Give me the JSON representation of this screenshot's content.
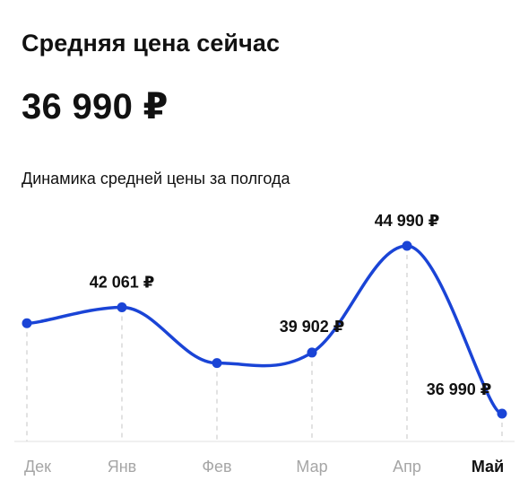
{
  "header": {
    "title": "Средняя цена сейчас",
    "current_price": "36 990 ₽",
    "subtitle": "Динамика средней цены за полгода"
  },
  "colors": {
    "line": "#1a44d6",
    "text": "#111111",
    "muted": "#a6a6a6",
    "grid": "#cfcfcf"
  },
  "chart_data": {
    "type": "line",
    "title": "Динамика средней цены за полгода",
    "categories": [
      "Дек",
      "Янв",
      "Фев",
      "Мар",
      "Апр",
      "Май"
    ],
    "current_category": "Май",
    "series": [
      {
        "values": [
          41300,
          42061,
          39400,
          39902,
          44990,
          36990
        ]
      }
    ],
    "data_labels": [
      {
        "index": 1,
        "text": "42 061 ₽"
      },
      {
        "index": 3,
        "text": "39 902 ₽"
      },
      {
        "index": 4,
        "text": "44 990 ₽"
      },
      {
        "index": 5,
        "text": "36 990 ₽"
      }
    ],
    "ylim": [
      35200,
      46500
    ],
    "grid": "vertical-dashed",
    "legend": "none"
  }
}
